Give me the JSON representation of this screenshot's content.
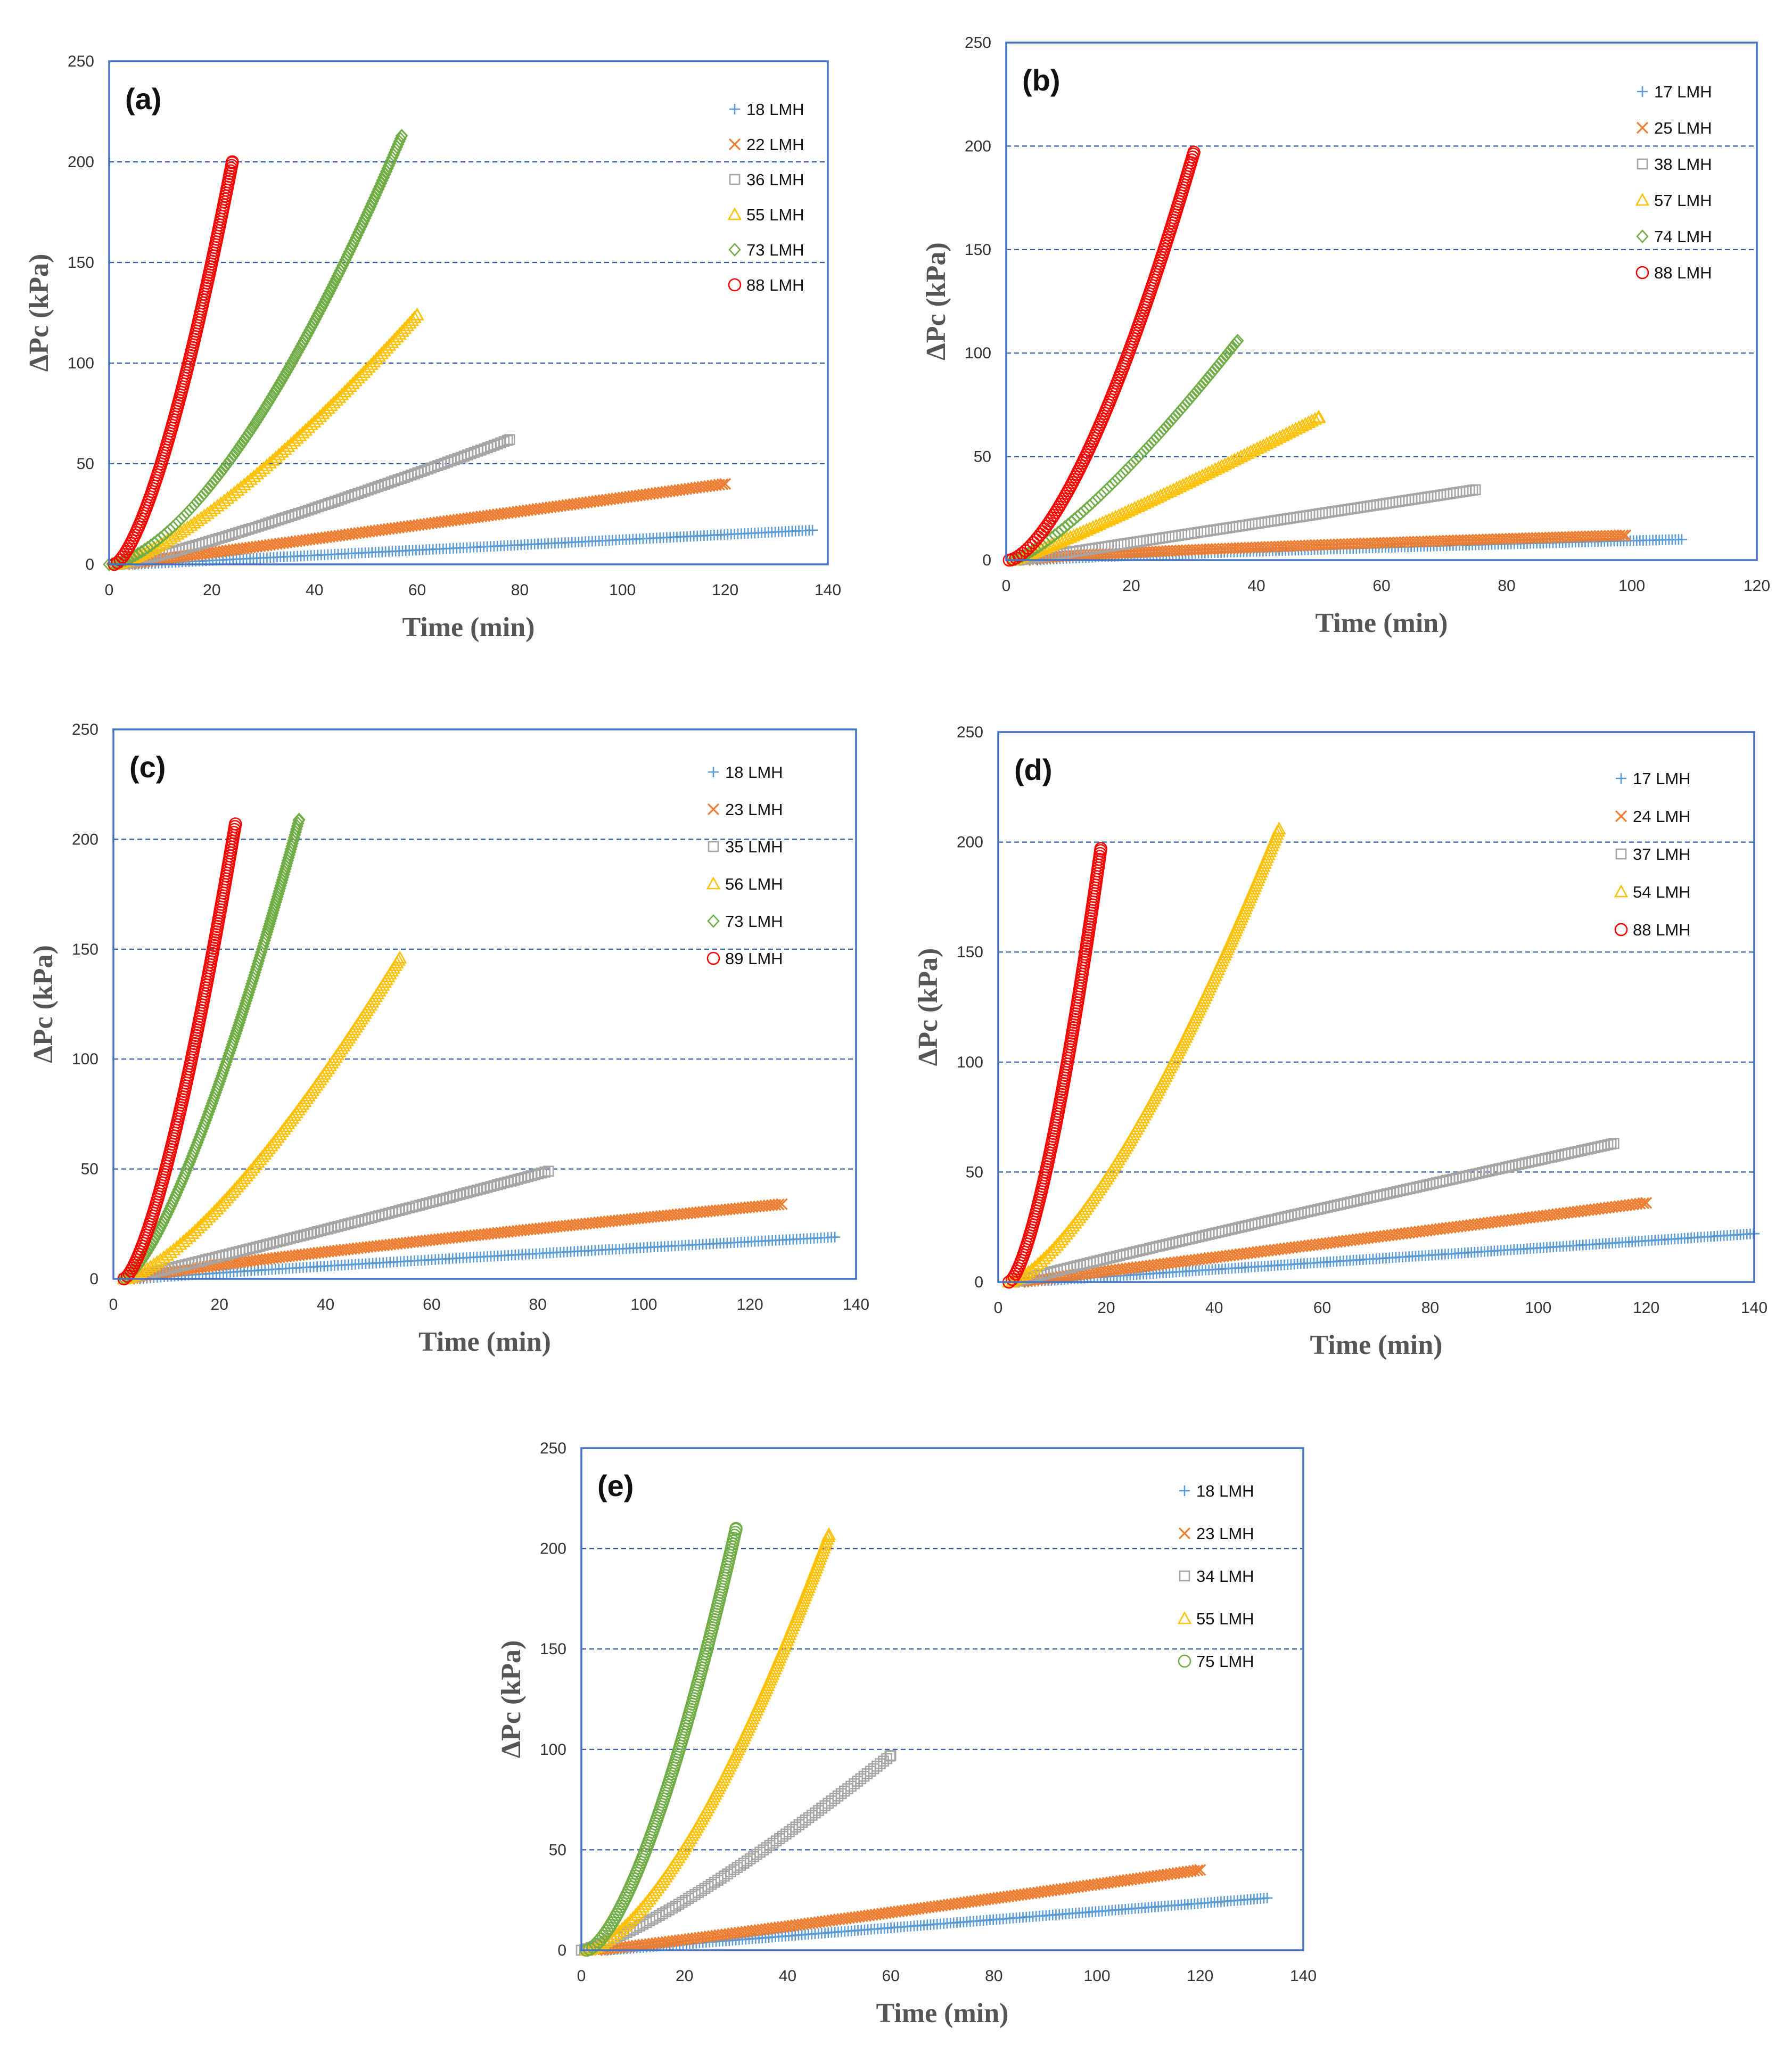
{
  "figure": {
    "colors": {
      "plot_border": "#4472c4",
      "gridline": "#2e5aa8",
      "blue": "#5b9bd5",
      "orange": "#ed7d31",
      "gray": "#a5a5a5",
      "yellow": "#ffc000",
      "green": "#70ad47",
      "red": "#ff0000"
    }
  },
  "chart_data": [
    {
      "panel": "(a)",
      "type": "scatter",
      "xlabel": "Time (min)",
      "ylabel": "ΔPc (kPa)",
      "xlim": [
        0,
        140
      ],
      "ylim": [
        0,
        250
      ],
      "xticks": [
        "0",
        "20",
        "40",
        "60",
        "80",
        "100",
        "120",
        "140"
      ],
      "yticks": [
        "0",
        "50",
        "100",
        "150",
        "200",
        "250"
      ],
      "gridlines_y": [
        50,
        100,
        150,
        200
      ],
      "series": [
        {
          "name": "18 LMH",
          "marker": "plus",
          "color": "blue",
          "x_start": 5,
          "x_end": 137,
          "y_end": 17,
          "exponent": 1.0
        },
        {
          "name": "22 LMH",
          "marker": "x",
          "color": "orange",
          "x_start": 3,
          "x_end": 120,
          "y_end": 40,
          "exponent": 1.0
        },
        {
          "name": "36 LMH",
          "marker": "square",
          "color": "gray",
          "x_start": 2,
          "x_end": 78,
          "y_end": 62,
          "exponent": 1.15
        },
        {
          "name": "55 LMH",
          "marker": "triangle",
          "color": "yellow",
          "x_start": 1,
          "x_end": 60,
          "y_end": 124,
          "exponent": 1.35
        },
        {
          "name": "73 LMH",
          "marker": "diamond",
          "color": "green",
          "x_start": 0,
          "x_end": 57,
          "y_end": 213,
          "exponent": 1.6
        },
        {
          "name": "88 LMH",
          "marker": "circle",
          "color": "red",
          "x_start": 1,
          "x_end": 24,
          "y_end": 200,
          "exponent": 1.5
        }
      ]
    },
    {
      "panel": "(b)",
      "type": "scatter",
      "xlabel": "Time  (min)",
      "ylabel": "ΔPc (kPa)",
      "xlim": [
        0,
        120
      ],
      "ylim": [
        0,
        250
      ],
      "xticks": [
        "0",
        "20",
        "40",
        "60",
        "80",
        "100",
        "120"
      ],
      "yticks": [
        "0",
        "50",
        "100",
        "150",
        "200",
        "250"
      ],
      "gridlines_y": [
        50,
        100,
        150,
        200
      ],
      "series": [
        {
          "name": "17 LMH",
          "marker": "plus",
          "color": "blue",
          "x_start": 5,
          "x_end": 108,
          "y_end": 10,
          "exponent": 0.8
        },
        {
          "name": "25 LMH",
          "marker": "x",
          "color": "orange",
          "x_start": 3,
          "x_end": 99,
          "y_end": 12,
          "exponent": 0.7
        },
        {
          "name": "38 LMH",
          "marker": "square",
          "color": "gray",
          "x_start": 2,
          "x_end": 75,
          "y_end": 34,
          "exponent": 1.0
        },
        {
          "name": "57 LMH",
          "marker": "triangle",
          "color": "yellow",
          "x_start": 1,
          "x_end": 50,
          "y_end": 69,
          "exponent": 1.1
        },
        {
          "name": "74 LMH",
          "marker": "diamond",
          "color": "green",
          "x_start": 1,
          "x_end": 37,
          "y_end": 106,
          "exponent": 1.3
        },
        {
          "name": "88 LMH",
          "marker": "circle",
          "color": "red",
          "x_start": 0.5,
          "x_end": 30,
          "y_end": 197,
          "exponent": 1.55
        }
      ]
    },
    {
      "panel": "(c)",
      "type": "scatter",
      "xlabel": "Time (min)",
      "ylabel": "ΔPc (kPa)",
      "xlim": [
        0,
        140
      ],
      "ylim": [
        0,
        250
      ],
      "xticks": [
        "0",
        "20",
        "40",
        "60",
        "80",
        "100",
        "120",
        "140"
      ],
      "yticks": [
        "0",
        "50",
        "100",
        "150",
        "200",
        "250"
      ],
      "gridlines_y": [
        50,
        100,
        150,
        200
      ],
      "series": [
        {
          "name": "18 LMH",
          "marker": "plus",
          "color": "blue",
          "x_start": 5,
          "x_end": 136,
          "y_end": 19,
          "exponent": 0.9
        },
        {
          "name": "23 LMH",
          "marker": "x",
          "color": "orange",
          "x_start": 3,
          "x_end": 126,
          "y_end": 34,
          "exponent": 0.85
        },
        {
          "name": "35 LMH",
          "marker": "square",
          "color": "gray",
          "x_start": 2,
          "x_end": 82,
          "y_end": 49,
          "exponent": 1.05
        },
        {
          "name": "56 LMH",
          "marker": "triangle",
          "color": "yellow",
          "x_start": 2,
          "x_end": 54,
          "y_end": 146,
          "exponent": 1.4
        },
        {
          "name": "73 LMH",
          "marker": "diamond",
          "color": "green",
          "x_start": 2,
          "x_end": 35,
          "y_end": 209,
          "exponent": 1.4
        },
        {
          "name": "89 LMH",
          "marker": "circle",
          "color": "red",
          "x_start": 2,
          "x_end": 23,
          "y_end": 207,
          "exponent": 1.45
        }
      ]
    },
    {
      "panel": "(d)",
      "type": "scatter",
      "xlabel": "Time (min)",
      "ylabel": "ΔPc (kPa)",
      "xlim": [
        0,
        140
      ],
      "ylim": [
        0,
        250
      ],
      "xticks": [
        "0",
        "20",
        "40",
        "60",
        "80",
        "100",
        "120",
        "140"
      ],
      "yticks": [
        "0",
        "50",
        "100",
        "150",
        "200",
        "250"
      ],
      "gridlines_y": [
        50,
        100,
        150,
        200
      ],
      "series": [
        {
          "name": "17 LMH",
          "marker": "plus",
          "color": "blue",
          "x_start": 5,
          "x_end": 140,
          "y_end": 22,
          "exponent": 1.0
        },
        {
          "name": "24 LMH",
          "marker": "x",
          "color": "orange",
          "x_start": 4,
          "x_end": 120,
          "y_end": 36,
          "exponent": 1.0
        },
        {
          "name": "37 LMH",
          "marker": "square",
          "color": "gray",
          "x_start": 3,
          "x_end": 114,
          "y_end": 63,
          "exponent": 0.95
        },
        {
          "name": "54 LMH",
          "marker": "triangle",
          "color": "yellow",
          "x_start": 2,
          "x_end": 52,
          "y_end": 206,
          "exponent": 1.45
        },
        {
          "name": "88 LMH",
          "marker": "circle",
          "color": "red",
          "x_start": 2,
          "x_end": 19,
          "y_end": 197,
          "exponent": 1.5
        }
      ]
    },
    {
      "panel": "(e)",
      "type": "scatter",
      "xlabel": "Time (min)",
      "ylabel": "ΔPc (kPa)",
      "xlim": [
        0,
        140
      ],
      "ylim": [
        0,
        250
      ],
      "xticks": [
        "0",
        "20",
        "40",
        "60",
        "80",
        "100",
        "120",
        "140"
      ],
      "yticks": [
        "0",
        "50",
        "100",
        "150",
        "200",
        "250"
      ],
      "gridlines_y": [
        50,
        100,
        150,
        200
      ],
      "series": [
        {
          "name": "18 LMH",
          "marker": "plus",
          "color": "blue",
          "x_start": 5,
          "x_end": 133,
          "y_end": 26,
          "exponent": 1.0
        },
        {
          "name": "23 LMH",
          "marker": "x",
          "color": "orange",
          "x_start": 3,
          "x_end": 120,
          "y_end": 40,
          "exponent": 1.05
        },
        {
          "name": "34 LMH",
          "marker": "square",
          "color": "gray",
          "x_start": 0,
          "x_end": 60,
          "y_end": 97,
          "exponent": 1.25
        },
        {
          "name": "55 LMH",
          "marker": "triangle",
          "color": "yellow",
          "x_start": 1,
          "x_end": 48,
          "y_end": 207,
          "exponent": 1.55
        },
        {
          "name": "75 LMH",
          "marker": "circle",
          "color": "green",
          "x_start": 1,
          "x_end": 30,
          "y_end": 210,
          "exponent": 1.55
        }
      ]
    }
  ]
}
